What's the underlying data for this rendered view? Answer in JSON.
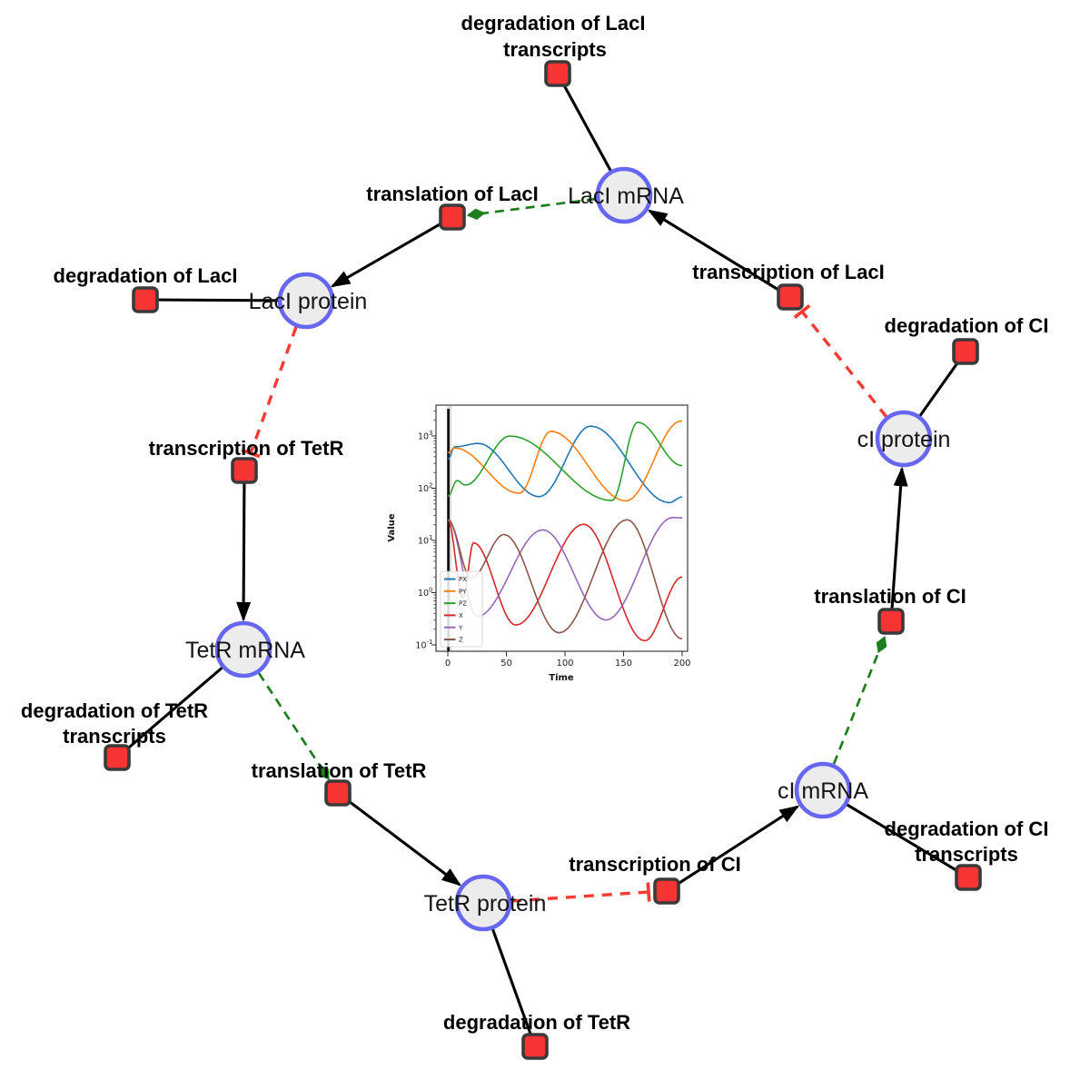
{
  "network": {
    "species": [
      {
        "id": "laci-mrna",
        "label": "LacI mRNA"
      },
      {
        "id": "laci-protein",
        "label": "LacI protein"
      },
      {
        "id": "tetr-mrna",
        "label": "TetR mRNA"
      },
      {
        "id": "tetr-protein",
        "label": "TetR protein"
      },
      {
        "id": "ci-mrna",
        "label": "cI mRNA"
      },
      {
        "id": "ci-protein",
        "label": "cI protein"
      }
    ],
    "reactions": [
      {
        "id": "degradation-laci-transcripts",
        "label_lines": [
          "degradation of LacI",
          "transcripts"
        ]
      },
      {
        "id": "translation-laci",
        "label_lines": [
          "translation of LacI"
        ]
      },
      {
        "id": "transcription-laci",
        "label_lines": [
          "transcription of LacI"
        ]
      },
      {
        "id": "degradation-ci",
        "label_lines": [
          "degradation of CI"
        ]
      },
      {
        "id": "degradation-laci",
        "label_lines": [
          "degradation of LacI"
        ]
      },
      {
        "id": "transcription-tetr",
        "label_lines": [
          "transcription of TetR"
        ]
      },
      {
        "id": "degradation-tetr-transcripts",
        "label_lines": [
          "degradation of TetR",
          "transcripts"
        ]
      },
      {
        "id": "translation-tetr",
        "label_lines": [
          "translation of TetR"
        ]
      },
      {
        "id": "degradation-tetr",
        "label_lines": [
          "degradation of TetR"
        ]
      },
      {
        "id": "transcription-ci",
        "label_lines": [
          "transcription of CI"
        ]
      },
      {
        "id": "translation-ci",
        "label_lines": [
          "translation of CI"
        ]
      },
      {
        "id": "degradation-ci-transcripts",
        "label_lines": [
          "degradation of CI",
          "transcripts"
        ]
      }
    ],
    "edges": [
      {
        "from": "laci-mrna",
        "to": "degradation-laci-transcripts",
        "type": "consumption"
      },
      {
        "from": "laci-protein",
        "to": "degradation-laci",
        "type": "consumption"
      },
      {
        "from": "tetr-mrna",
        "to": "degradation-tetr-transcripts",
        "type": "consumption"
      },
      {
        "from": "tetr-protein",
        "to": "degradation-tetr",
        "type": "consumption"
      },
      {
        "from": "ci-mrna",
        "to": "degradation-ci-transcripts",
        "type": "consumption"
      },
      {
        "from": "ci-protein",
        "to": "degradation-ci",
        "type": "consumption"
      },
      {
        "from": "transcription-laci",
        "to": "laci-mrna",
        "type": "production"
      },
      {
        "from": "translation-laci",
        "to": "laci-protein",
        "type": "production"
      },
      {
        "from": "transcription-tetr",
        "to": "tetr-mrna",
        "type": "production"
      },
      {
        "from": "translation-tetr",
        "to": "tetr-protein",
        "type": "production"
      },
      {
        "from": "transcription-ci",
        "to": "ci-mrna",
        "type": "production"
      },
      {
        "from": "translation-ci",
        "to": "ci-protein",
        "type": "production"
      },
      {
        "from": "laci-mrna",
        "to": "translation-laci",
        "type": "modifier"
      },
      {
        "from": "tetr-mrna",
        "to": "translation-tetr",
        "type": "modifier"
      },
      {
        "from": "ci-mrna",
        "to": "translation-ci",
        "type": "modifier"
      },
      {
        "from": "laci-protein",
        "to": "transcription-tetr",
        "type": "inhibition"
      },
      {
        "from": "tetr-protein",
        "to": "transcription-ci",
        "type": "inhibition"
      },
      {
        "from": "ci-protein",
        "to": "transcription-laci",
        "type": "inhibition"
      }
    ],
    "colors": {
      "species_fill": "#ececec",
      "species_stroke": "#6666f0",
      "reaction_fill": "#f73434",
      "reaction_stroke": "#3a3a3a",
      "consumption_production": "#000000",
      "modifier": "#1e7e1e",
      "inhibition": "#f63c30"
    }
  },
  "chart_data": {
    "type": "line",
    "title": "",
    "xlabel": "Time",
    "ylabel": "Value",
    "x_ticks": [
      0,
      50,
      100,
      150,
      200
    ],
    "y_ticks": [
      -1,
      0,
      1,
      2,
      3
    ],
    "y_tick_labels": [
      "10⁻¹",
      "10⁰",
      "10¹",
      "10²",
      "10³"
    ],
    "y_scale": "log",
    "xlim": [
      -10,
      205
    ],
    "ylim_log": [
      -1.12,
      3.62
    ],
    "grid": false,
    "legend_position": "lower left",
    "annotations": [
      {
        "type": "vline",
        "x": 0,
        "color": "#000000"
      }
    ],
    "series": [
      {
        "name": "PX",
        "color": "#1f77b4",
        "keypoints": [
          [
            0,
            360
          ],
          [
            6,
            620
          ],
          [
            26,
            720
          ],
          [
            78,
            69
          ],
          [
            122,
            1550
          ],
          [
            189,
            53
          ],
          [
            200,
            68
          ]
        ]
      },
      {
        "name": "PY",
        "color": "#ff7f0e",
        "keypoints": [
          [
            0,
            480
          ],
          [
            6,
            590
          ],
          [
            61,
            80
          ],
          [
            88,
            1230
          ],
          [
            152,
            57
          ],
          [
            199,
            1930
          ],
          [
            200,
            1925
          ]
        ]
      },
      {
        "name": "PZ",
        "color": "#2ca02c",
        "keypoints": [
          [
            0,
            70
          ],
          [
            8,
            140
          ],
          [
            15,
            115
          ],
          [
            53,
            1000
          ],
          [
            140,
            58
          ],
          [
            162,
            1830
          ],
          [
            200,
            270
          ]
        ]
      },
      {
        "name": "X",
        "color": "#d62728",
        "keypoints": [
          [
            0,
            25
          ],
          [
            13,
            0.8
          ],
          [
            22,
            9
          ],
          [
            58,
            0.24
          ],
          [
            116,
            20.5
          ],
          [
            168,
            0.12
          ],
          [
            200,
            2.0
          ]
        ]
      },
      {
        "name": "Y",
        "color": "#9467bd",
        "keypoints": [
          [
            0,
            25
          ],
          [
            25,
            0.35
          ],
          [
            81,
            16
          ],
          [
            135,
            0.3
          ],
          [
            192,
            27.5
          ],
          [
            200,
            27
          ]
        ]
      },
      {
        "name": "Z",
        "color": "#8c564b",
        "keypoints": [
          [
            0,
            25
          ],
          [
            20,
            1.9
          ],
          [
            48,
            13
          ],
          [
            95,
            0.17
          ],
          [
            153,
            25
          ],
          [
            200,
            0.13
          ]
        ]
      }
    ]
  }
}
